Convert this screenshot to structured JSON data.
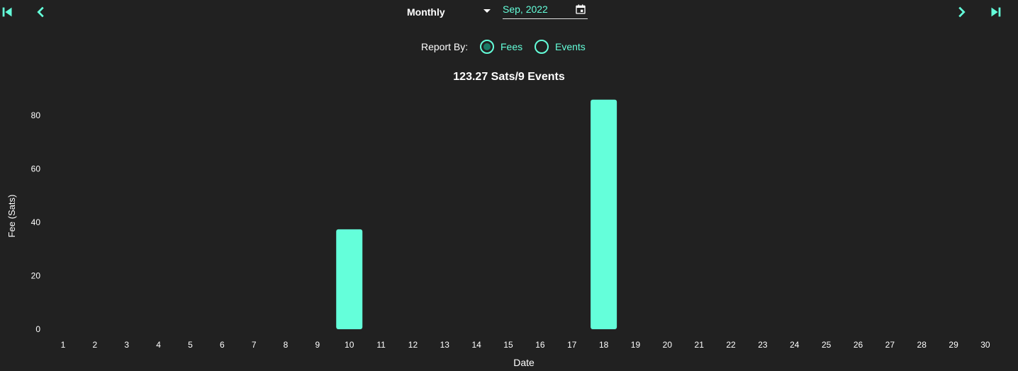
{
  "colors": {
    "accent": "#64ffda",
    "background": "#212121",
    "text": "#ffffff"
  },
  "nav": {
    "first_icon": "first-page-icon",
    "prev_icon": "chevron-left-icon",
    "next_icon": "chevron-right-icon",
    "last_icon": "last-page-icon"
  },
  "period": {
    "selected": "Monthly",
    "icon": "arrow-drop-down-icon"
  },
  "date_field": {
    "value": "Sep, 2022",
    "icon": "calendar-icon"
  },
  "report": {
    "label": "Report By:",
    "options": [
      {
        "label": "Fees",
        "selected": true
      },
      {
        "label": "Events",
        "selected": false
      }
    ]
  },
  "summary": "123.27 Sats/9 Events",
  "chart_data": {
    "type": "bar",
    "xlabel": "Date",
    "ylabel": "Fee (Sats)",
    "categories": [
      "1",
      "2",
      "3",
      "4",
      "5",
      "6",
      "7",
      "8",
      "9",
      "10",
      "11",
      "12",
      "13",
      "14",
      "15",
      "16",
      "17",
      "18",
      "19",
      "20",
      "21",
      "22",
      "23",
      "24",
      "25",
      "26",
      "27",
      "28",
      "29",
      "30"
    ],
    "values": [
      0,
      0,
      0,
      0,
      0,
      0,
      0,
      0,
      0,
      37.4,
      0,
      0,
      0,
      0,
      0,
      0,
      0,
      85.9,
      0,
      0,
      0,
      0,
      0,
      0,
      0,
      0,
      0,
      0,
      0,
      0
    ],
    "yticks": [
      0,
      20,
      40,
      60,
      80
    ],
    "ylim": [
      0,
      86
    ],
    "grid": false,
    "legend": "none"
  }
}
